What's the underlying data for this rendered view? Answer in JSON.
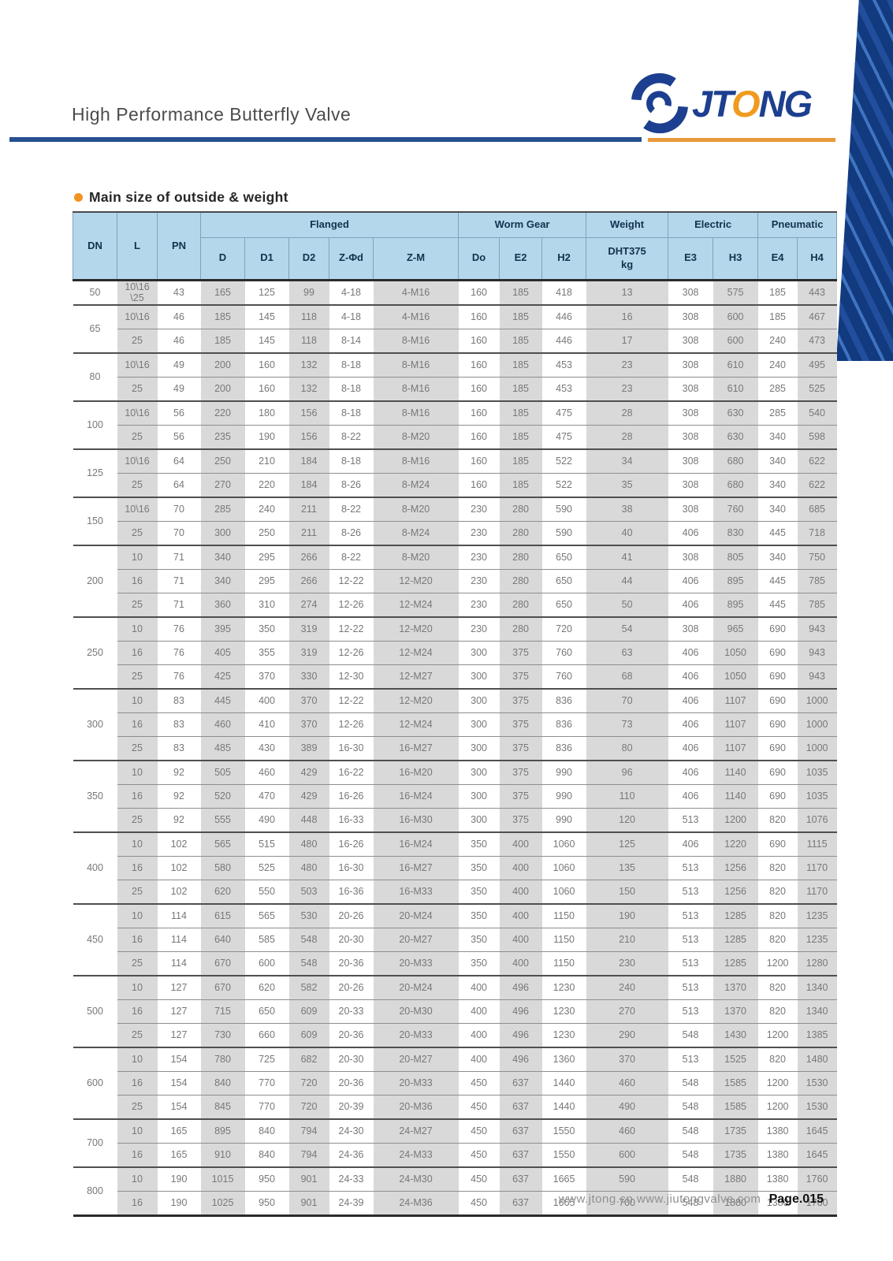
{
  "header": {
    "title": "High Performance Butterfly Valve",
    "logo": {
      "pre": "JT",
      "o": "O",
      "post": "NG"
    }
  },
  "section_heading": "Main size of outside & weight",
  "table": {
    "group_headers": [
      {
        "label": "DN",
        "colspan": 1,
        "rowspan": 2
      },
      {
        "label": "L",
        "colspan": 1,
        "rowspan": 2
      },
      {
        "label": "PN",
        "colspan": 1,
        "rowspan": 2
      },
      {
        "label": "Flanged",
        "colspan": 5,
        "rowspan": 1
      },
      {
        "label": "Worm Gear",
        "colspan": 3,
        "rowspan": 1
      },
      {
        "label": "Weight",
        "colspan": 1,
        "rowspan": 1
      },
      {
        "label": "Electric",
        "colspan": 2,
        "rowspan": 1
      },
      {
        "label": "Pneumatic",
        "colspan": 2,
        "rowspan": 1
      }
    ],
    "sub_headers": [
      "D",
      "D1",
      "D2",
      "Z-Φd",
      "Z-M",
      "Do",
      "E2",
      "H2",
      "DHT375\nkg",
      "E3",
      "H3",
      "E4",
      "H4"
    ],
    "row_groups": [
      {
        "dn": "50",
        "rows": [
          [
            "10\\16\n\\25",
            "43",
            "165",
            "125",
            "99",
            "4-18",
            "4-M16",
            "160",
            "185",
            "418",
            "13",
            "308",
            "575",
            "185",
            "443"
          ]
        ]
      },
      {
        "dn": "65",
        "rows": [
          [
            "10\\16",
            "46",
            "185",
            "145",
            "118",
            "4-18",
            "4-M16",
            "160",
            "185",
            "446",
            "16",
            "308",
            "600",
            "185",
            "467"
          ],
          [
            "25",
            "46",
            "185",
            "145",
            "118",
            "8-14",
            "8-M16",
            "160",
            "185",
            "446",
            "17",
            "308",
            "600",
            "240",
            "473"
          ]
        ]
      },
      {
        "dn": "80",
        "rows": [
          [
            "10\\16",
            "49",
            "200",
            "160",
            "132",
            "8-18",
            "8-M16",
            "160",
            "185",
            "453",
            "23",
            "308",
            "610",
            "240",
            "495"
          ],
          [
            "25",
            "49",
            "200",
            "160",
            "132",
            "8-18",
            "8-M16",
            "160",
            "185",
            "453",
            "23",
            "308",
            "610",
            "285",
            "525"
          ]
        ]
      },
      {
        "dn": "100",
        "rows": [
          [
            "10\\16",
            "56",
            "220",
            "180",
            "156",
            "8-18",
            "8-M16",
            "160",
            "185",
            "475",
            "28",
            "308",
            "630",
            "285",
            "540"
          ],
          [
            "25",
            "56",
            "235",
            "190",
            "156",
            "8-22",
            "8-M20",
            "160",
            "185",
            "475",
            "28",
            "308",
            "630",
            "340",
            "598"
          ]
        ]
      },
      {
        "dn": "125",
        "rows": [
          [
            "10\\16",
            "64",
            "250",
            "210",
            "184",
            "8-18",
            "8-M16",
            "160",
            "185",
            "522",
            "34",
            "308",
            "680",
            "340",
            "622"
          ],
          [
            "25",
            "64",
            "270",
            "220",
            "184",
            "8-26",
            "8-M24",
            "160",
            "185",
            "522",
            "35",
            "308",
            "680",
            "340",
            "622"
          ]
        ]
      },
      {
        "dn": "150",
        "rows": [
          [
            "10\\16",
            "70",
            "285",
            "240",
            "211",
            "8-22",
            "8-M20",
            "230",
            "280",
            "590",
            "38",
            "308",
            "760",
            "340",
            "685"
          ],
          [
            "25",
            "70",
            "300",
            "250",
            "211",
            "8-26",
            "8-M24",
            "230",
            "280",
            "590",
            "40",
            "406",
            "830",
            "445",
            "718"
          ]
        ]
      },
      {
        "dn": "200",
        "rows": [
          [
            "10",
            "71",
            "340",
            "295",
            "266",
            "8-22",
            "8-M20",
            "230",
            "280",
            "650",
            "41",
            "308",
            "805",
            "340",
            "750"
          ],
          [
            "16",
            "71",
            "340",
            "295",
            "266",
            "12-22",
            "12-M20",
            "230",
            "280",
            "650",
            "44",
            "406",
            "895",
            "445",
            "785"
          ],
          [
            "25",
            "71",
            "360",
            "310",
            "274",
            "12-26",
            "12-M24",
            "230",
            "280",
            "650",
            "50",
            "406",
            "895",
            "445",
            "785"
          ]
        ]
      },
      {
        "dn": "250",
        "rows": [
          [
            "10",
            "76",
            "395",
            "350",
            "319",
            "12-22",
            "12-M20",
            "230",
            "280",
            "720",
            "54",
            "308",
            "965",
            "690",
            "943"
          ],
          [
            "16",
            "76",
            "405",
            "355",
            "319",
            "12-26",
            "12-M24",
            "300",
            "375",
            "760",
            "63",
            "406",
            "1050",
            "690",
            "943"
          ],
          [
            "25",
            "76",
            "425",
            "370",
            "330",
            "12-30",
            "12-M27",
            "300",
            "375",
            "760",
            "68",
            "406",
            "1050",
            "690",
            "943"
          ]
        ]
      },
      {
        "dn": "300",
        "rows": [
          [
            "10",
            "83",
            "445",
            "400",
            "370",
            "12-22",
            "12-M20",
            "300",
            "375",
            "836",
            "70",
            "406",
            "1107",
            "690",
            "1000"
          ],
          [
            "16",
            "83",
            "460",
            "410",
            "370",
            "12-26",
            "12-M24",
            "300",
            "375",
            "836",
            "73",
            "406",
            "1107",
            "690",
            "1000"
          ],
          [
            "25",
            "83",
            "485",
            "430",
            "389",
            "16-30",
            "16-M27",
            "300",
            "375",
            "836",
            "80",
            "406",
            "1107",
            "690",
            "1000"
          ]
        ]
      },
      {
        "dn": "350",
        "rows": [
          [
            "10",
            "92",
            "505",
            "460",
            "429",
            "16-22",
            "16-M20",
            "300",
            "375",
            "990",
            "96",
            "406",
            "1140",
            "690",
            "1035"
          ],
          [
            "16",
            "92",
            "520",
            "470",
            "429",
            "16-26",
            "16-M24",
            "300",
            "375",
            "990",
            "110",
            "406",
            "1140",
            "690",
            "1035"
          ],
          [
            "25",
            "92",
            "555",
            "490",
            "448",
            "16-33",
            "16-M30",
            "300",
            "375",
            "990",
            "120",
            "513",
            "1200",
            "820",
            "1076"
          ]
        ]
      },
      {
        "dn": "400",
        "rows": [
          [
            "10",
            "102",
            "565",
            "515",
            "480",
            "16-26",
            "16-M24",
            "350",
            "400",
            "1060",
            "125",
            "406",
            "1220",
            "690",
            "1115"
          ],
          [
            "16",
            "102",
            "580",
            "525",
            "480",
            "16-30",
            "16-M27",
            "350",
            "400",
            "1060",
            "135",
            "513",
            "1256",
            "820",
            "1170"
          ],
          [
            "25",
            "102",
            "620",
            "550",
            "503",
            "16-36",
            "16-M33",
            "350",
            "400",
            "1060",
            "150",
            "513",
            "1256",
            "820",
            "1170"
          ]
        ]
      },
      {
        "dn": "450",
        "rows": [
          [
            "10",
            "114",
            "615",
            "565",
            "530",
            "20-26",
            "20-M24",
            "350",
            "400",
            "1150",
            "190",
            "513",
            "1285",
            "820",
            "1235"
          ],
          [
            "16",
            "114",
            "640",
            "585",
            "548",
            "20-30",
            "20-M27",
            "350",
            "400",
            "1150",
            "210",
            "513",
            "1285",
            "820",
            "1235"
          ],
          [
            "25",
            "114",
            "670",
            "600",
            "548",
            "20-36",
            "20-M33",
            "350",
            "400",
            "1150",
            "230",
            "513",
            "1285",
            "1200",
            "1280"
          ]
        ]
      },
      {
        "dn": "500",
        "rows": [
          [
            "10",
            "127",
            "670",
            "620",
            "582",
            "20-26",
            "20-M24",
            "400",
            "496",
            "1230",
            "240",
            "513",
            "1370",
            "820",
            "1340"
          ],
          [
            "16",
            "127",
            "715",
            "650",
            "609",
            "20-33",
            "20-M30",
            "400",
            "496",
            "1230",
            "270",
            "513",
            "1370",
            "820",
            "1340"
          ],
          [
            "25",
            "127",
            "730",
            "660",
            "609",
            "20-36",
            "20-M33",
            "400",
            "496",
            "1230",
            "290",
            "548",
            "1430",
            "1200",
            "1385"
          ]
        ]
      },
      {
        "dn": "600",
        "rows": [
          [
            "10",
            "154",
            "780",
            "725",
            "682",
            "20-30",
            "20-M27",
            "400",
            "496",
            "1360",
            "370",
            "513",
            "1525",
            "820",
            "1480"
          ],
          [
            "16",
            "154",
            "840",
            "770",
            "720",
            "20-36",
            "20-M33",
            "450",
            "637",
            "1440",
            "460",
            "548",
            "1585",
            "1200",
            "1530"
          ],
          [
            "25",
            "154",
            "845",
            "770",
            "720",
            "20-39",
            "20-M36",
            "450",
            "637",
            "1440",
            "490",
            "548",
            "1585",
            "1200",
            "1530"
          ]
        ]
      },
      {
        "dn": "700",
        "rows": [
          [
            "10",
            "165",
            "895",
            "840",
            "794",
            "24-30",
            "24-M27",
            "450",
            "637",
            "1550",
            "460",
            "548",
            "1735",
            "1380",
            "1645"
          ],
          [
            "16",
            "165",
            "910",
            "840",
            "794",
            "24-36",
            "24-M33",
            "450",
            "637",
            "1550",
            "600",
            "548",
            "1735",
            "1380",
            "1645"
          ]
        ]
      },
      {
        "dn": "800",
        "rows": [
          [
            "10",
            "190",
            "1015",
            "950",
            "901",
            "24-33",
            "24-M30",
            "450",
            "637",
            "1665",
            "590",
            "548",
            "1880",
            "1380",
            "1760"
          ],
          [
            "16",
            "190",
            "1025",
            "950",
            "901",
            "24-39",
            "24-M36",
            "450",
            "637",
            "1665",
            "700",
            "548",
            "1880",
            "1380",
            "1760"
          ]
        ]
      }
    ]
  },
  "footer": {
    "urls": "www.jtong.cn  www.jiutongvalve.com",
    "page_label": "Page.015"
  }
}
